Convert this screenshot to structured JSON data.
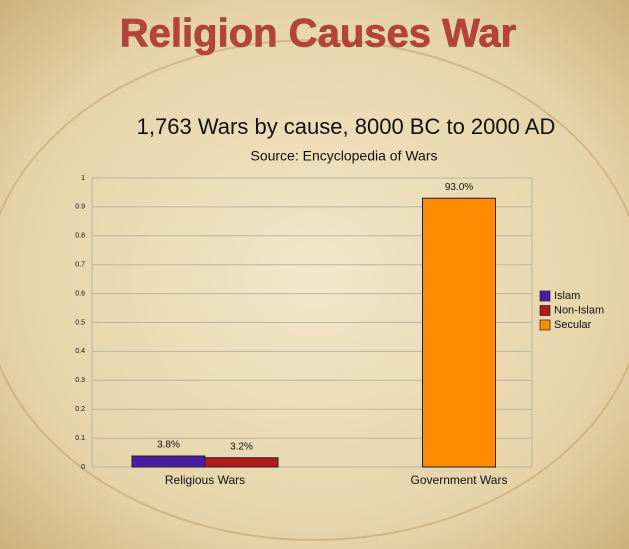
{
  "banner": "Religion Causes War",
  "chart_data": {
    "type": "bar",
    "title": "1,763 Wars by cause, 8000 BC to 2000 AD",
    "subtitle": "Source: Encyclopedia of Wars",
    "categories": [
      "Religious Wars",
      "Government Wars"
    ],
    "series": [
      {
        "name": "Islam",
        "color": "#4a1ca6",
        "values": [
          0.038,
          null
        ],
        "value_labels": [
          "3.8%",
          null
        ]
      },
      {
        "name": "Non-Islam",
        "color": "#b31b1b",
        "values": [
          0.032,
          null
        ],
        "value_labels": [
          "3.2%",
          null
        ]
      },
      {
        "name": "Secular",
        "color": "#ff8c00",
        "values": [
          null,
          0.93
        ],
        "value_labels": [
          null,
          "93.0%"
        ]
      }
    ],
    "ylim": [
      0,
      1
    ],
    "yticks": [
      0,
      0.1,
      0.2,
      0.3,
      0.4,
      0.5,
      0.6,
      0.7,
      0.8,
      0.9,
      1
    ],
    "grid": true,
    "legend": "right"
  }
}
